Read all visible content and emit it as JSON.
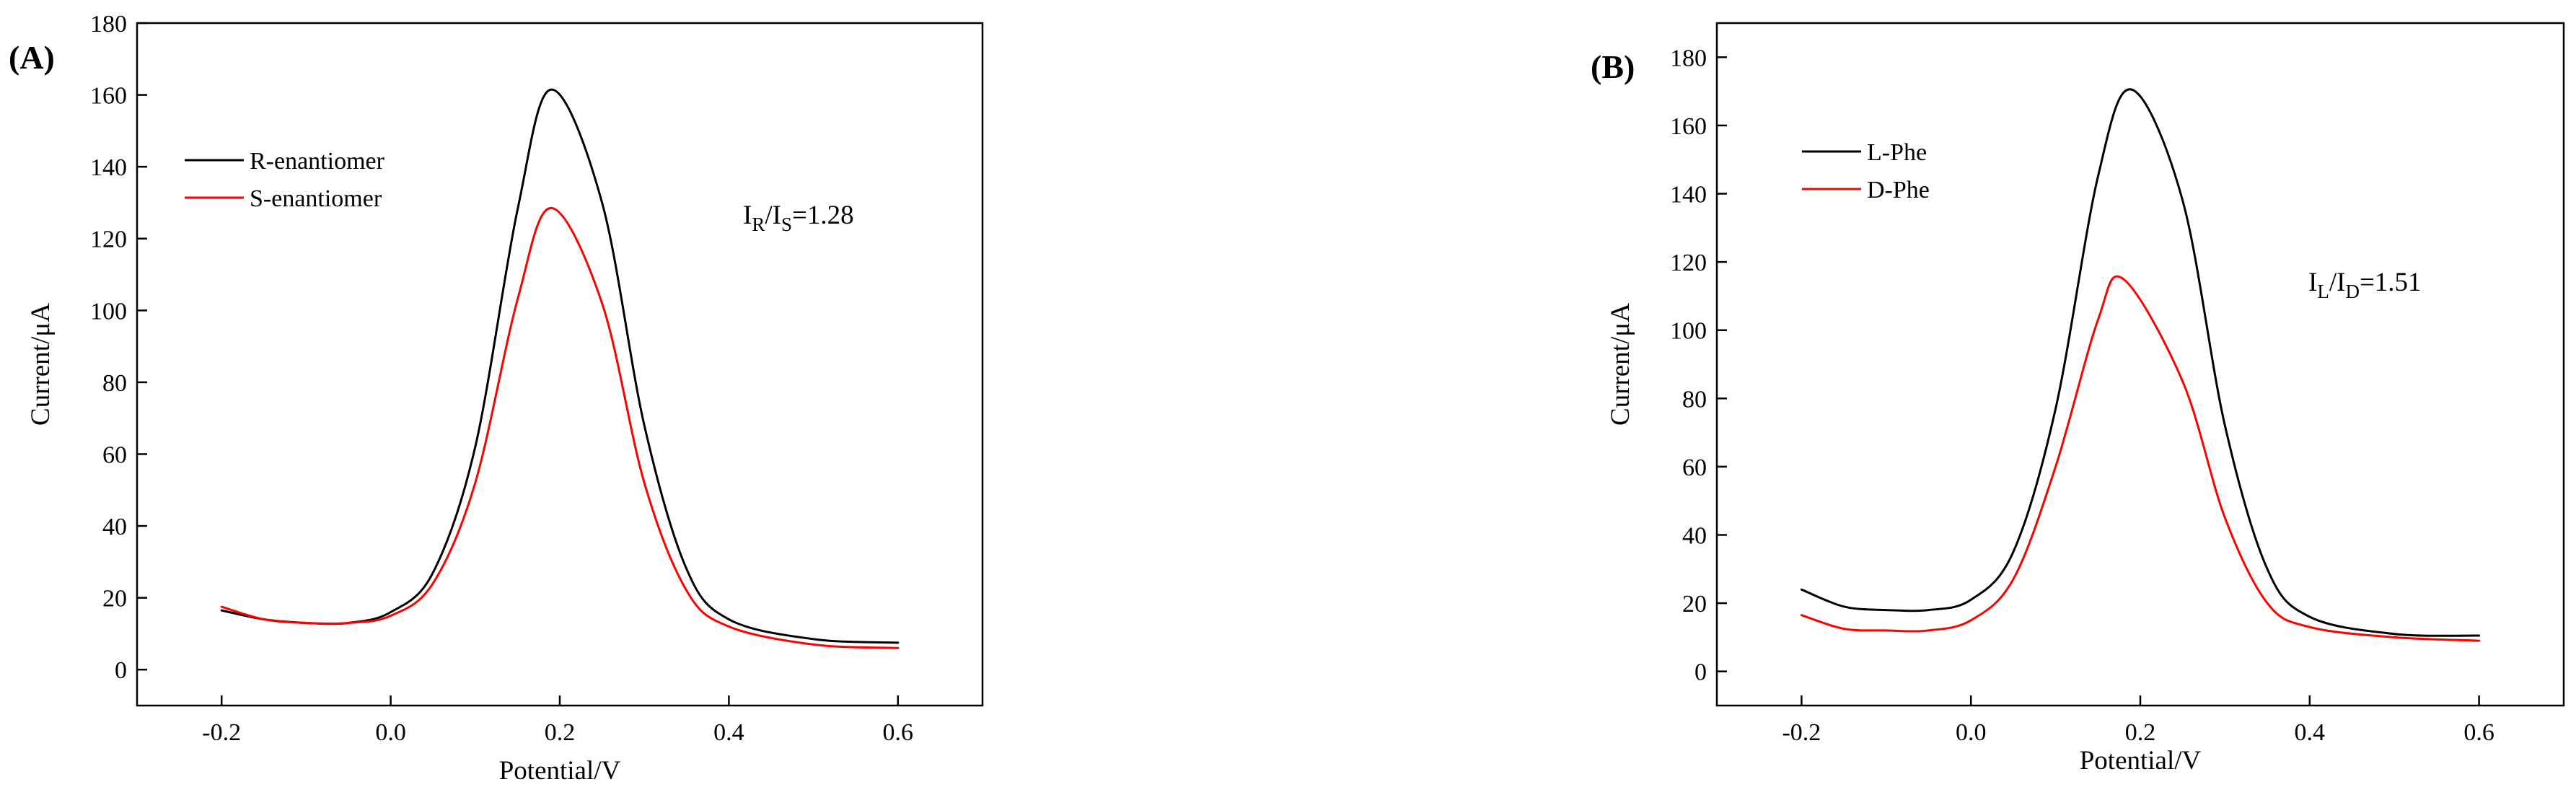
{
  "chart_data": [
    {
      "type": "line",
      "panel_label": "(A)",
      "xlabel": "Potential/V",
      "ylabel": "Current/μA",
      "xlim": [
        -0.3,
        0.7
      ],
      "ylim": [
        -10,
        180
      ],
      "x_ticks": [
        -0.2,
        0.0,
        0.2,
        0.4,
        0.6
      ],
      "x_tick_labels": [
        "-0.2",
        "0.0",
        "0.2",
        "0.4",
        "0.6"
      ],
      "y_ticks": [
        0,
        20,
        40,
        60,
        80,
        100,
        120,
        140,
        160,
        180
      ],
      "y_tick_labels": [
        "0",
        "20",
        "40",
        "60",
        "80",
        "100",
        "120",
        "140",
        "160",
        "180"
      ],
      "grid": false,
      "legend_position": "top-left",
      "annotation": {
        "main": "I",
        "sub1": "R",
        "mid": "/I",
        "sub2": "S",
        "tail": "=1.28"
      },
      "series": [
        {
          "name": "R-enantiomer",
          "color": "#000000",
          "x": [
            -0.2,
            -0.15,
            -0.1,
            -0.05,
            0.0,
            0.05,
            0.1,
            0.15,
            0.19,
            0.25,
            0.3,
            0.35,
            0.4,
            0.5,
            0.6
          ],
          "y": [
            16.5,
            14,
            13,
            13,
            16,
            27,
            62,
            128,
            161.5,
            130,
            68,
            28,
            14,
            8.5,
            7.5
          ]
        },
        {
          "name": "S-enantiomer",
          "color": "#ff0000",
          "x": [
            -0.2,
            -0.15,
            -0.1,
            -0.05,
            0.0,
            0.05,
            0.1,
            0.15,
            0.19,
            0.25,
            0.3,
            0.35,
            0.4,
            0.5,
            0.6
          ],
          "y": [
            17.5,
            14,
            13,
            13,
            15,
            24,
            52,
            103,
            128.5,
            102,
            52,
            22,
            12,
            7,
            6
          ]
        }
      ]
    },
    {
      "type": "line",
      "panel_label": "(B)",
      "xlabel": "Potential/V",
      "ylabel": "Current/μA",
      "xlim": [
        -0.3,
        0.7
      ],
      "ylim": [
        -10,
        190
      ],
      "x_ticks": [
        -0.2,
        0.0,
        0.2,
        0.4,
        0.6
      ],
      "x_tick_labels": [
        "-0.2",
        "0.0",
        "0.2",
        "0.4",
        "0.6"
      ],
      "y_ticks": [
        0,
        20,
        40,
        60,
        80,
        100,
        120,
        140,
        160,
        180
      ],
      "y_tick_labels": [
        "0",
        "20",
        "40",
        "60",
        "80",
        "100",
        "120",
        "140",
        "160",
        "180"
      ],
      "grid": false,
      "legend_position": "top-left",
      "annotation": {
        "main": "I",
        "sub1": "L",
        "mid": "/I",
        "sub2": "D",
        "tail": "=1.51"
      },
      "series": [
        {
          "name": "L-Phe",
          "color": "#000000",
          "x": [
            -0.2,
            -0.15,
            -0.1,
            -0.05,
            0.0,
            0.05,
            0.1,
            0.15,
            0.19,
            0.25,
            0.3,
            0.35,
            0.4,
            0.5,
            0.6
          ],
          "y": [
            24,
            19,
            18,
            18,
            21,
            35,
            77,
            145,
            170.5,
            138,
            72,
            30,
            16,
            11,
            10.5
          ]
        },
        {
          "name": "D-Phe",
          "color": "#ff0000",
          "x": [
            -0.2,
            -0.15,
            -0.1,
            -0.05,
            0.0,
            0.05,
            0.1,
            0.15,
            0.18,
            0.25,
            0.3,
            0.35,
            0.4,
            0.5,
            0.6
          ],
          "y": [
            16.5,
            12.5,
            12,
            12,
            15,
            27,
            60,
            103,
            115,
            85,
            45,
            20,
            13,
            10,
            9
          ]
        }
      ]
    }
  ]
}
